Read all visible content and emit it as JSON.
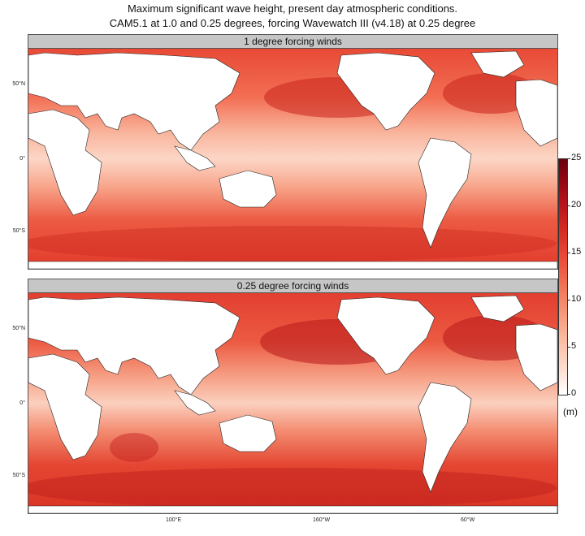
{
  "title_line1": "Maximum significant wave height, present day atmospheric conditions.",
  "title_line2": "CAM5.1 at 1.0 and 0.25 degrees, forcing Wavewatch III (v4.18) at 0.25 degree",
  "panels": [
    {
      "label": "1 degree forcing winds"
    },
    {
      "label": "0.25 degree forcing winds"
    }
  ],
  "lat_ticks": [
    "50°N",
    "0°",
    "50°S"
  ],
  "lon_ticks": [
    "100°E",
    "160°W",
    "60°W"
  ],
  "colorbar": {
    "ticks": [
      "25",
      "20",
      "15",
      "10",
      "5",
      "0"
    ],
    "unit": "(m)",
    "colors": [
      "#ffffff",
      "#fbbfa6",
      "#f17356",
      "#d42a22",
      "#8c0612",
      "#6b0010"
    ]
  },
  "colors": {
    "land": "#ffffff",
    "ocean_base": "#f7a088",
    "strip": "#c6c6c6"
  }
}
